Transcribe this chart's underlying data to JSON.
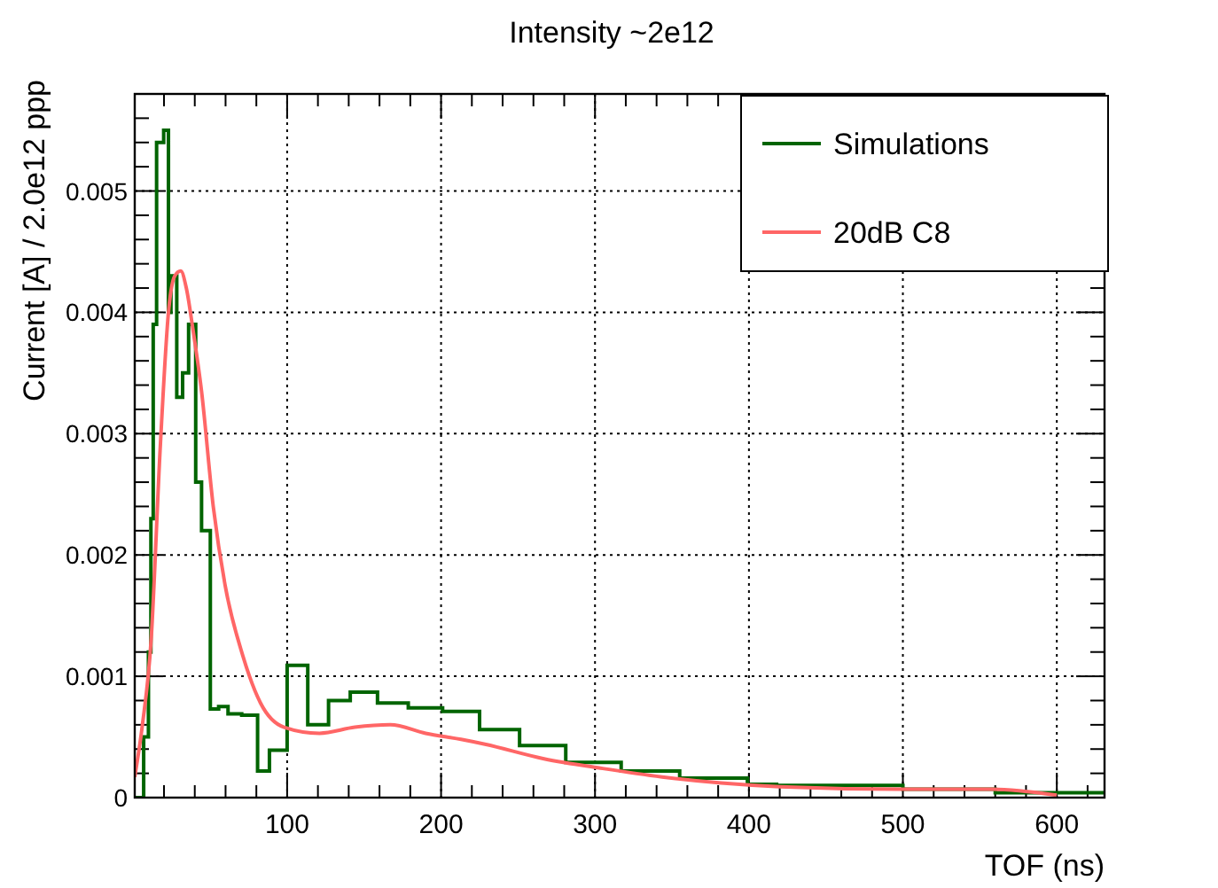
{
  "chart_data": {
    "type": "histogram",
    "title": "Intensity ~2e12",
    "xlabel": "TOF (ns)",
    "ylabel": "Current [A] / 2.0e12 ppp",
    "xlim": [
      1,
      631
    ],
    "ylim": [
      0,
      0.0058
    ],
    "xticks": [
      {
        "value": 20,
        "label": null
      },
      {
        "value": 40,
        "label": null
      },
      {
        "value": 60,
        "label": null
      },
      {
        "value": 80,
        "label": null
      },
      100,
      {
        "value": 120,
        "label": null
      },
      {
        "value": 140,
        "label": null
      },
      {
        "value": 160,
        "label": null
      },
      {
        "value": 180,
        "label": null
      },
      200,
      {
        "value": 220,
        "label": null
      },
      {
        "value": 240,
        "label": null
      },
      {
        "value": 260,
        "label": null
      },
      {
        "value": 280,
        "label": null
      },
      300,
      {
        "value": 320,
        "label": null
      },
      {
        "value": 340,
        "label": null
      },
      {
        "value": 360,
        "label": null
      },
      {
        "value": 380,
        "label": null
      },
      400,
      {
        "value": 420,
        "label": null
      },
      {
        "value": 440,
        "label": null
      },
      {
        "value": 460,
        "label": null
      },
      {
        "value": 480,
        "label": null
      },
      500,
      {
        "value": 520,
        "label": null
      },
      {
        "value": 540,
        "label": null
      },
      {
        "value": 560,
        "label": null
      },
      {
        "value": 580,
        "label": null
      },
      600,
      {
        "value": 620,
        "label": null
      }
    ],
    "yticks": [
      0,
      {
        "value": 0.0002,
        "label": null
      },
      {
        "value": 0.0004,
        "label": null
      },
      {
        "value": 0.0006,
        "label": null
      },
      {
        "value": 0.0008,
        "label": null
      },
      0.001,
      {
        "value": 0.0012,
        "label": null
      },
      {
        "value": 0.0014,
        "label": null
      },
      {
        "value": 0.0016,
        "label": null
      },
      {
        "value": 0.0018,
        "label": null
      },
      0.002,
      {
        "value": 0.0022,
        "label": null
      },
      {
        "value": 0.0024,
        "label": null
      },
      {
        "value": 0.0026,
        "label": null
      },
      {
        "value": 0.0028,
        "label": null
      },
      0.003,
      {
        "value": 0.0032,
        "label": null
      },
      {
        "value": 0.0034,
        "label": null
      },
      {
        "value": 0.0036,
        "label": null
      },
      {
        "value": 0.0038,
        "label": null
      },
      0.004,
      {
        "value": 0.0042,
        "label": null
      },
      {
        "value": 0.0044,
        "label": null
      },
      {
        "value": 0.0046,
        "label": null
      },
      {
        "value": 0.0048,
        "label": null
      },
      0.005,
      {
        "value": 0.0052,
        "label": null
      },
      {
        "value": 0.0054,
        "label": null
      },
      {
        "value": 0.0056,
        "label": null
      }
    ],
    "grid": true,
    "legend": "top right",
    "series": [
      {
        "name": "Simulations",
        "color": "#006400",
        "bins": [
          1,
          6.8,
          9.9,
          11.5,
          13,
          15.2,
          19.8,
          22.9,
          24.5,
          28.3,
          32.1,
          36,
          40.6,
          44.4,
          50.1,
          55.5,
          61.6,
          70.5,
          80.8,
          88.5,
          100,
          113.4,
          126.9,
          141,
          158.7,
          178.7,
          201,
          225,
          251,
          281,
          317,
          355,
          399,
          418,
          500,
          560,
          631
        ],
        "values": [
          0,
          0.0005,
          0.0012,
          0.0023,
          0.0039,
          0.0054,
          0.0055,
          0.004,
          0.0043,
          0.0033,
          0.0035,
          0.0039,
          0.0026,
          0.0022,
          0.00073,
          0.00075,
          0.00069,
          0.00068,
          0.00022,
          0.00039,
          0.00109,
          0.0006,
          0.0008,
          0.00087,
          0.00078,
          0.00074,
          0.00071,
          0.00056,
          0.00043,
          0.00029,
          0.00022,
          0.00016,
          0.00011,
          0.0001,
          7e-05,
          4e-05
        ]
      },
      {
        "name": "20dB C8",
        "type": "line",
        "color": "#ff6666",
        "x": [
          1,
          6,
          11.7,
          17.5,
          23.2,
          27,
          30.9,
          34.5,
          38.8,
          44.4,
          52,
          59.7,
          71.2,
          82.7,
          98,
          121,
          144,
          167,
          190,
          213,
          228.5,
          266.9,
          305,
          343.6,
          382,
          420,
          497,
          558,
          600
        ],
        "values": [
          0.00017,
          0.0006,
          0.00131,
          0.00287,
          0.00404,
          0.0043,
          0.00434,
          0.0042,
          0.00386,
          0.00335,
          0.0024,
          0.00175,
          0.00117,
          0.00078,
          0.00058,
          0.00053,
          0.00058,
          0.0006,
          0.00053,
          0.00048,
          0.00044,
          0.00032,
          0.00024,
          0.00017,
          0.00012,
          9e-05,
          7e-05,
          7e-05,
          2e-05
        ]
      }
    ]
  }
}
